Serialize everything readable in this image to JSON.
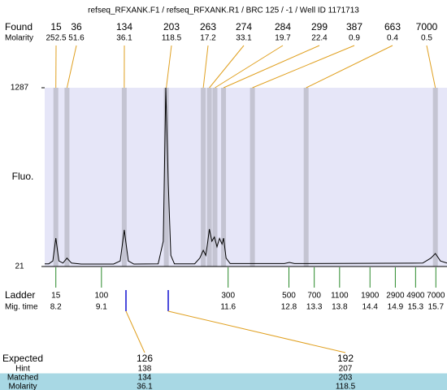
{
  "title": "refseq_RFXANK.F1 / refseq_RFXANK.R1 / BRC 125 / -1 / Well ID 1171713",
  "found": {
    "label": "Found",
    "molarity_label": "Molarity",
    "sizes": [
      15,
      36,
      134,
      203,
      263,
      274,
      284,
      299,
      387,
      663,
      7000
    ],
    "molarity": [
      252.5,
      51.6,
      36.1,
      118.5,
      17.2,
      33.1,
      19.7,
      22.4,
      0.9,
      0.4,
      0.5
    ]
  },
  "chart_data": {
    "type": "line",
    "y_label": "Fluo.",
    "x": [
      7.98,
      8.06,
      8.14,
      8.2,
      8.26,
      8.34,
      8.42,
      8.51,
      8.7,
      9.34,
      9.47,
      9.55,
      9.63,
      9.74,
      10.22,
      10.32,
      10.37,
      10.42,
      10.47,
      10.54,
      10.94,
      11.04,
      11.11,
      11.16,
      11.2,
      11.23,
      11.28,
      11.33,
      11.38,
      11.43,
      11.48,
      11.51,
      11.56,
      11.64,
      12.71,
      12.81,
      12.91,
      15.44,
      15.6,
      15.69,
      15.79,
      15.92
    ],
    "values": [
      40,
      40,
      60,
      222,
      60,
      45,
      80,
      45,
      38,
      38,
      60,
      280,
      60,
      38,
      40,
      200,
      1287,
      600,
      100,
      40,
      40,
      80,
      136,
      100,
      200,
      286,
      200,
      230,
      160,
      220,
      180,
      222,
      80,
      42,
      42,
      50,
      42,
      45,
      80,
      113,
      60,
      45
    ],
    "color": "#000000",
    "bands": [
      8.2,
      8.42,
      9.55,
      10.38,
      11.11,
      11.23,
      11.34,
      11.51,
      12.08,
      13.14,
      15.69
    ],
    "band_color": "#c4c4d2",
    "xlim": [
      7.98,
      15.92
    ],
    "ylim": [
      21,
      1287
    ],
    "yticks": [
      21,
      1287
    ]
  },
  "ladder": {
    "label": "Ladder",
    "time_label": "Mig. time",
    "sizes": [
      15,
      100,
      300,
      500,
      700,
      1100,
      1900,
      2900,
      4900,
      7000
    ],
    "times": [
      8.2,
      9.1,
      11.6,
      12.8,
      13.3,
      13.8,
      14.4,
      14.9,
      15.3,
      15.7
    ]
  },
  "expected": {
    "label": "Expected",
    "columns": [
      126,
      192
    ],
    "rows": [
      {
        "label": "Hint",
        "values": [
          138,
          207
        ]
      },
      {
        "label": "Matched",
        "values": [
          134,
          203
        ]
      },
      {
        "label": "Molarity",
        "values": [
          36.1,
          118.5
        ]
      }
    ]
  }
}
